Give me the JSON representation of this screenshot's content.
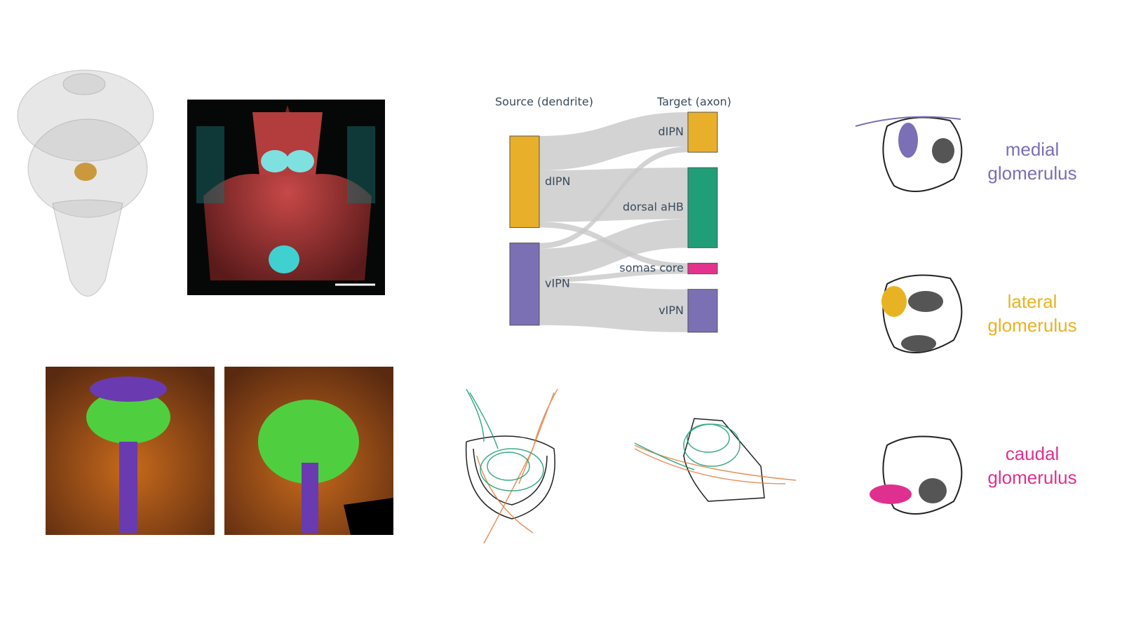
{
  "sankey": {
    "type": "sankey",
    "source_header": "Source (dendrite)",
    "target_header": "Target (axon)",
    "sources": [
      {
        "label": "dIPN",
        "color": "#e8b02a"
      },
      {
        "label": "vIPN",
        "color": "#7b70b4"
      }
    ],
    "targets": [
      {
        "label": "dIPN",
        "color": "#e8b02a"
      },
      {
        "label": "dorsal aHB",
        "color": "#1f9e78"
      },
      {
        "label": "somas core",
        "color": "#e2338f"
      },
      {
        "label": "vIPN",
        "color": "#7b70b4"
      }
    ],
    "links": [
      {
        "source": 0,
        "target": 0,
        "value": 48
      },
      {
        "source": 0,
        "target": 1,
        "value": 72
      },
      {
        "source": 0,
        "target": 2,
        "value": 8
      },
      {
        "source": 1,
        "target": 0,
        "value": 8
      },
      {
        "source": 1,
        "target": 1,
        "value": 40
      },
      {
        "source": 1,
        "target": 2,
        "value": 7
      },
      {
        "source": 1,
        "target": 3,
        "value": 60
      }
    ]
  },
  "glomeruli": [
    {
      "line1": "medial",
      "line2": "glomerulus",
      "color": "#7b6fb5"
    },
    {
      "line1": "lateral",
      "line2": "glomerulus",
      "color": "#e8b323"
    },
    {
      "line1": "caudal",
      "line2": "glomerulus",
      "color": "#e0308f"
    }
  ]
}
